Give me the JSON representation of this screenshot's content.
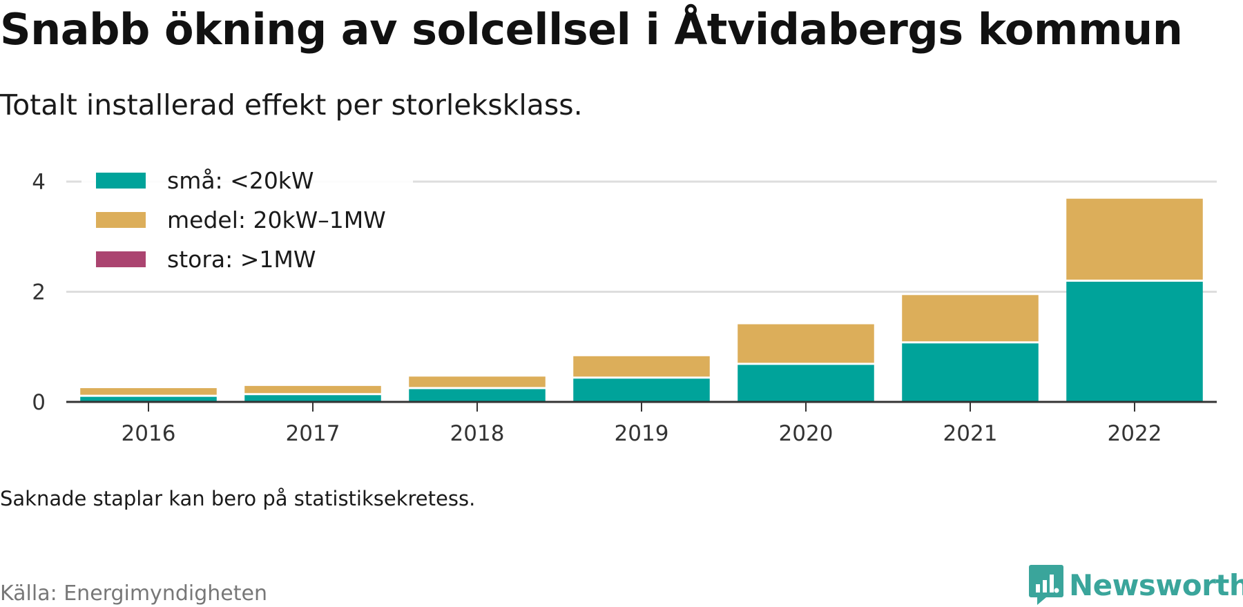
{
  "title": "Snabb ökning av solcellsel i Åtvidabergs kommun",
  "subtitle": "Totalt installerad effekt per storleksklass.",
  "note": "Saknade staplar kan bero på statistiksekretess.",
  "source": "Källa: Energimyndigheten",
  "brand": {
    "name": "Newsworthy",
    "icon": "newsworthy-logo-icon",
    "color": "#3aa59b"
  },
  "chart_data": {
    "type": "bar",
    "stacked": true,
    "categories": [
      "2016",
      "2017",
      "2018",
      "2019",
      "2020",
      "2021",
      "2022"
    ],
    "series": [
      {
        "name": "små: <20kW",
        "color": "#00a39a",
        "values": [
          0.13,
          0.16,
          0.27,
          0.46,
          0.71,
          1.1,
          2.22
        ]
      },
      {
        "name": "medel: 20kW–1MW",
        "color": "#dcae5a",
        "values": [
          0.12,
          0.13,
          0.19,
          0.37,
          0.7,
          0.84,
          1.47
        ]
      },
      {
        "name": "stora: >1MW",
        "color": "#ab4470",
        "values": [
          0,
          0,
          0,
          0,
          0,
          0,
          0
        ]
      }
    ],
    "yticks": [
      0,
      2,
      4
    ],
    "ylim": [
      0,
      4
    ],
    "grid": true,
    "legend": "top-left"
  }
}
